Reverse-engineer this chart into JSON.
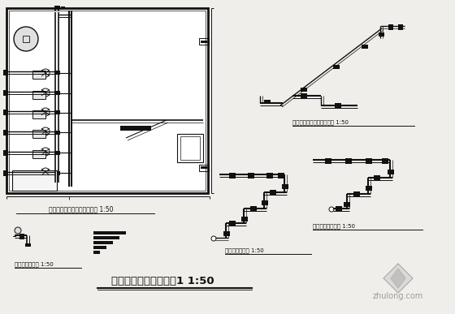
{
  "bg_color": "#f0eeea",
  "line_color": "#111111",
  "title": "泵房、消防水池工艺图1 1:50",
  "label1": "水泵房及消防水池管道布置图 1:50",
  "label2": "水池进水管详图 1:50",
  "label3": "水池溢流管、排污管系统图 1:50",
  "label4": "喷淋水泵系统图 1:50",
  "label5": "消火栓水泵系统图 1:50",
  "watermark": "zhulong.com"
}
